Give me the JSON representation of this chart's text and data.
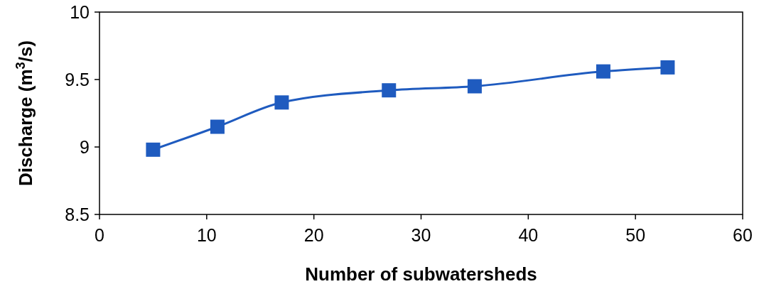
{
  "chart_data": {
    "type": "line",
    "xlabel": "Number of subwatersheds",
    "ylabel": "Discharge (m$^{3}$/s)",
    "x": [
      5,
      11,
      17,
      27,
      35,
      47,
      53
    ],
    "series": [
      {
        "color": "#1f5bbf",
        "values": [
          8.98,
          9.15,
          9.33,
          9.42,
          9.45,
          9.56,
          9.59
        ]
      }
    ],
    "xlim": [
      0,
      60
    ],
    "xticks": [
      0,
      10,
      20,
      30,
      40,
      50,
      60
    ],
    "ylim": [
      8.5,
      10
    ],
    "yticks": [
      8.5,
      9,
      {
        "value": 9.5,
        "label": "9.5"
      },
      10
    ],
    "marker": "square",
    "line_style": "solid",
    "grid": false
  }
}
